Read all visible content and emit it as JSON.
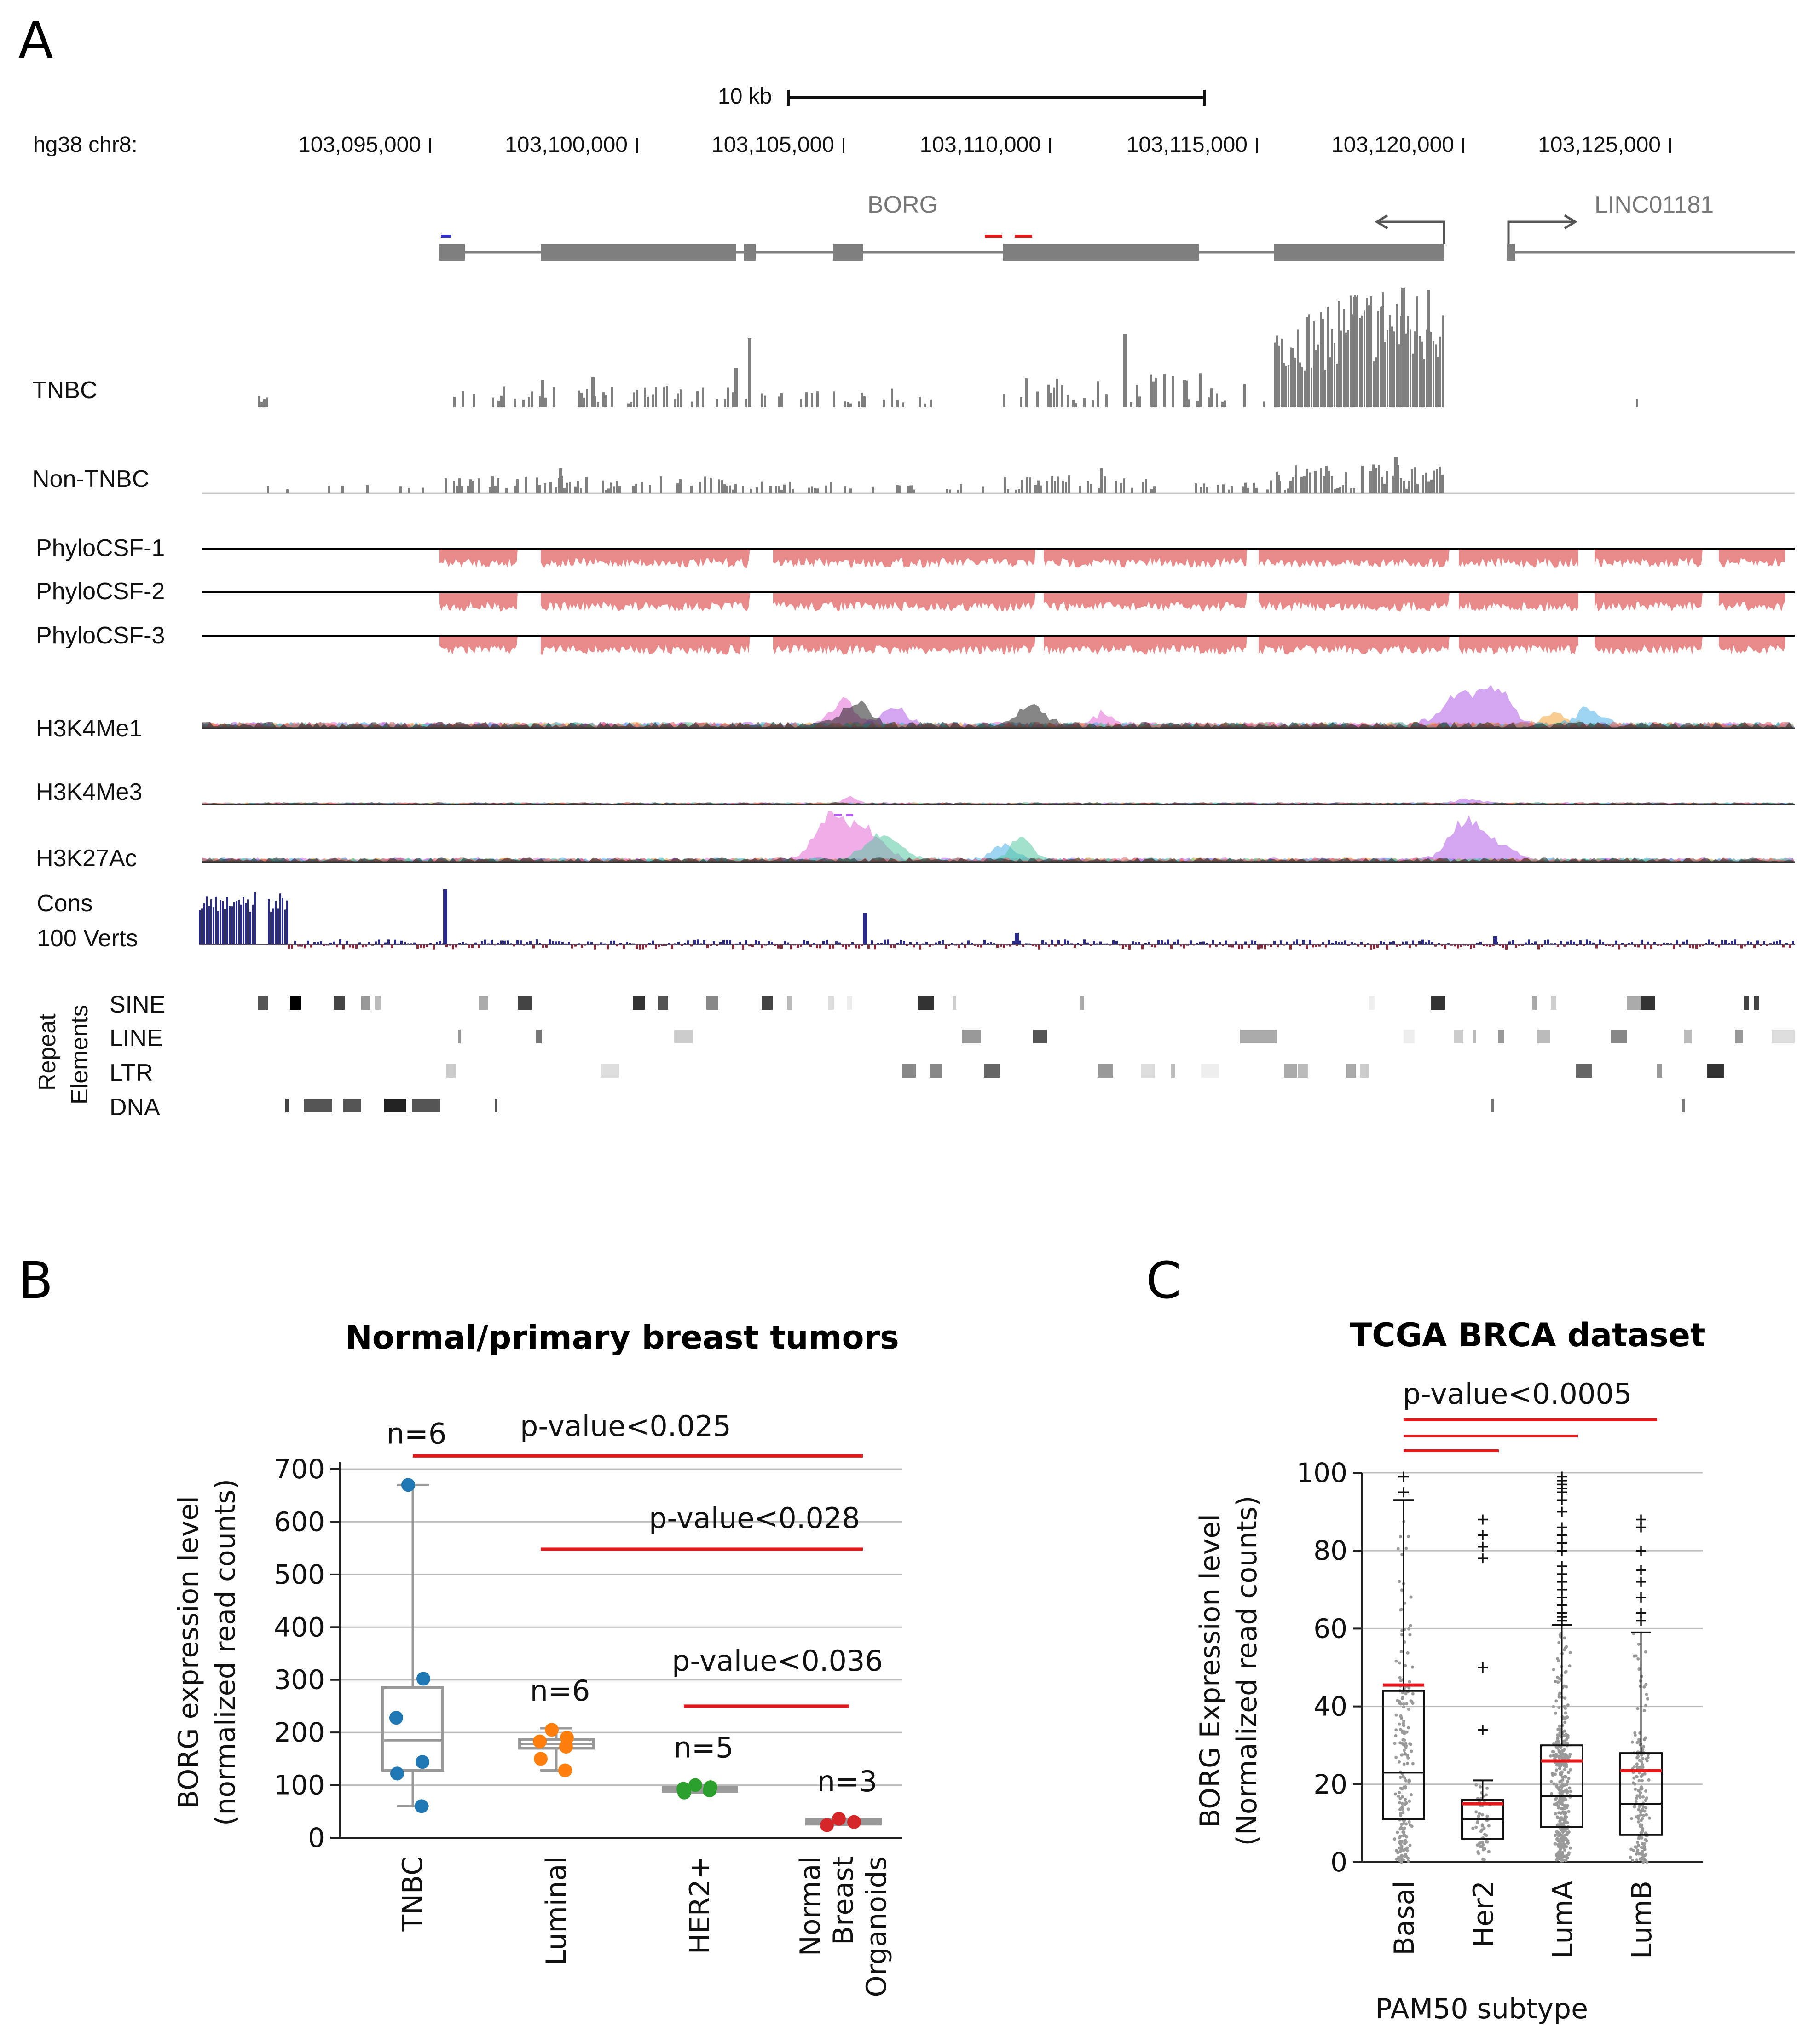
{
  "panels": {
    "a": "A",
    "b": "B",
    "c": "C"
  },
  "genome": {
    "scale_label": "10 kb",
    "assembly": "hg38 chr8:",
    "coordinates": [
      "103,095,000",
      "103,100,000",
      "103,105,000",
      "103,110,000",
      "103,115,000",
      "103,120,000",
      "103,125,000"
    ],
    "genes": [
      "BORG",
      "LINC01181"
    ],
    "tracks": {
      "tnbc": "TNBC",
      "nontnbc": "Non-TNBC",
      "phylo1": "PhyloCSF-1",
      "phylo2": "PhyloCSF-2",
      "phylo3": "PhyloCSF-3",
      "h3k4me1": "H3K4Me1",
      "h3k4me3": "H3K4Me3",
      "h3k27ac": "H3K27Ac",
      "cons1": "Cons",
      "cons2": "100 Verts"
    },
    "repeat_group": [
      "Repeat",
      "Elements"
    ],
    "repeat_classes": [
      "SINE",
      "LINE",
      "LTR",
      "DNA"
    ]
  },
  "colors": {
    "accent_red": "#e41a1c",
    "tnbc": "#1f77b4",
    "luminal": "#ff7f0e",
    "her2": "#2ca02c",
    "normal": "#d62728",
    "track_gray": "#7f7f7f",
    "phylo": "#e88a8a",
    "cons": "#2a2a8a"
  },
  "chart_data": [
    {
      "type": "box",
      "title": "Normal/primary breast tumors",
      "ylabel": [
        "BORG expression level",
        "(normalized read counts)"
      ],
      "ylim": [
        0,
        700
      ],
      "yticks": [
        0,
        100,
        200,
        300,
        400,
        500,
        600,
        700
      ],
      "categories": [
        "TNBC",
        "Luminal",
        "HER2+",
        "Normal Breast Organoids"
      ],
      "category_lines": [
        [
          "TNBC"
        ],
        [
          "Luminal"
        ],
        [
          "HER2+"
        ],
        [
          "Normal",
          "Breast",
          "Organoids"
        ]
      ],
      "n_labels": [
        "n=6",
        "n=6",
        "n=5",
        "n=3"
      ],
      "boxes": [
        {
          "whislo": 60,
          "q1": 128,
          "med": 185,
          "q3": 285,
          "whishi": 670
        },
        {
          "whislo": 128,
          "q1": 170,
          "med": 178,
          "q3": 187,
          "whishi": 208
        },
        {
          "whislo": 86,
          "q1": 88,
          "med": 92,
          "q3": 96,
          "whishi": 100
        },
        {
          "whislo": 24,
          "q1": 26,
          "med": 31,
          "q3": 35,
          "whishi": 36
        }
      ],
      "points": [
        [
          670,
          302,
          228,
          144,
          122,
          60
        ],
        [
          205,
          190,
          183,
          173,
          150,
          128
        ],
        [
          100,
          96,
          93,
          90,
          86
        ],
        [
          36,
          30,
          24
        ]
      ],
      "comparisons": [
        {
          "label": "p-value<0.025",
          "from": 0,
          "to": 3,
          "y": 725
        },
        {
          "label": "p-value<0.028",
          "from": 1,
          "to": 3,
          "y": 548
        },
        {
          "label": "p-value<0.036",
          "from": 2,
          "to": 3,
          "y": 250
        }
      ]
    },
    {
      "type": "box",
      "title": "TCGA BRCA dataset",
      "xlabel": "PAM50 subtype",
      "ylabel": [
        "BORG Expression level",
        "(Normalized read counts)"
      ],
      "ylim": [
        0,
        100
      ],
      "yticks": [
        0,
        20,
        40,
        60,
        80,
        100
      ],
      "categories": [
        "Basal",
        "Her2",
        "LumA",
        "LumB"
      ],
      "boxes": [
        {
          "whislo": 0,
          "q1": 11,
          "med": 23,
          "q3": 44,
          "whishi": 93,
          "mean": 45.5
        },
        {
          "whislo": 0,
          "q1": 6,
          "med": 11,
          "q3": 16,
          "whishi": 21,
          "mean": 15
        },
        {
          "whislo": 0,
          "q1": 9,
          "med": 17,
          "q3": 30,
          "whishi": 61,
          "mean": 26
        },
        {
          "whislo": 0,
          "q1": 7,
          "med": 15,
          "q3": 28,
          "whishi": 59,
          "mean": 23.5
        }
      ],
      "outliers": [
        [
          99,
          95
        ],
        [
          88,
          84,
          81,
          78,
          50,
          34
        ],
        [
          99,
          98,
          97,
          96,
          95,
          93,
          90,
          86,
          84,
          82,
          80,
          76,
          74,
          72,
          70,
          68,
          66,
          64,
          63,
          62
        ],
        [
          88,
          86,
          80,
          75,
          72,
          68,
          64,
          62
        ]
      ],
      "comparison_label": "p-value<0.0005",
      "comparisons": [
        {
          "from": 0,
          "to": 3,
          "y": 113
        },
        {
          "from": 0,
          "to": 2,
          "y": 109
        },
        {
          "from": 0,
          "to": 1,
          "y": 105
        }
      ]
    }
  ]
}
